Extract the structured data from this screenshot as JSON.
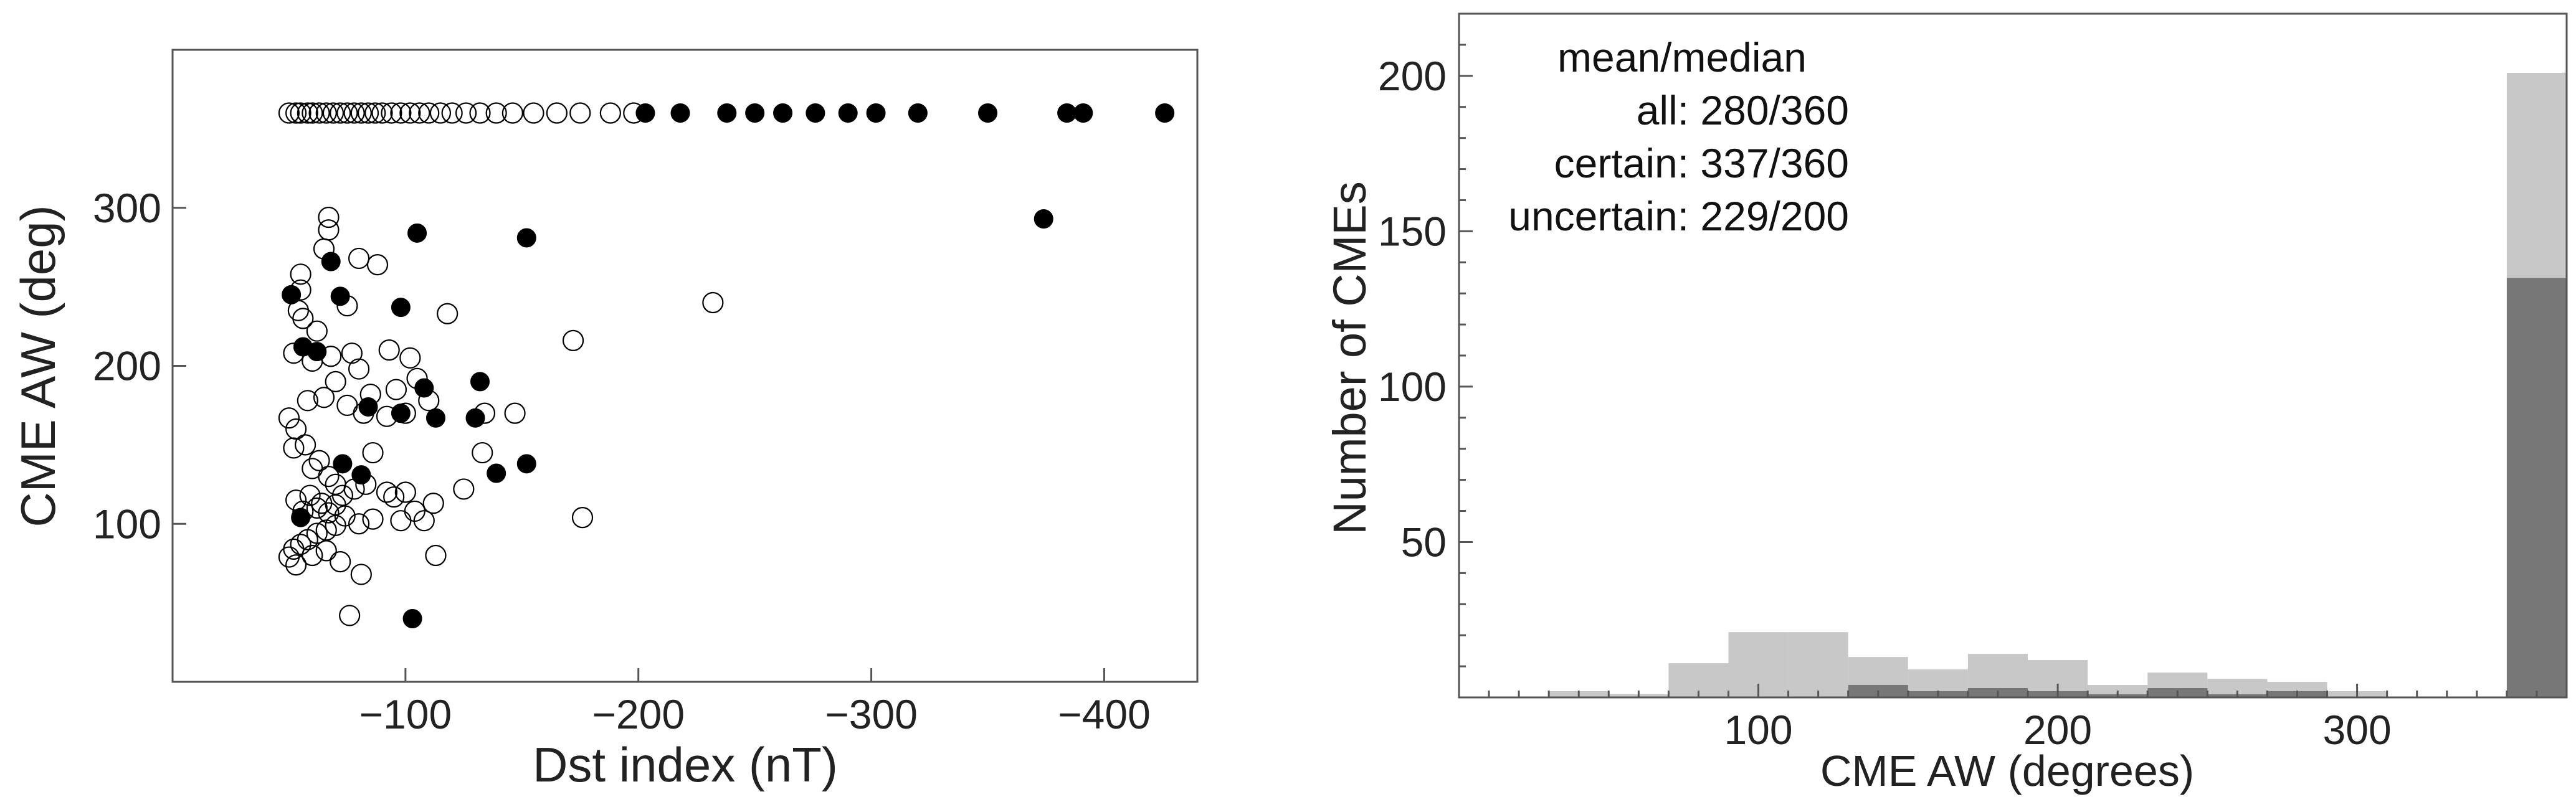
{
  "chart_data": [
    {
      "type": "scatter",
      "xlabel": "Dst index (nT)",
      "ylabel": "CME AW (deg)",
      "xlim": [
        0,
        -440
      ],
      "ylim": [
        0,
        400
      ],
      "x_ticks": [
        -100,
        -200,
        -300,
        -400
      ],
      "y_ticks": [
        100,
        200,
        300
      ],
      "grid": false,
      "series": [
        {
          "marker": "open-circle",
          "color": "#000000",
          "points": [
            [
              -50,
              360
            ],
            [
              -53,
              360
            ],
            [
              -55,
              360
            ],
            [
              -58,
              360
            ],
            [
              -60,
              360
            ],
            [
              -63,
              360
            ],
            [
              -66,
              360
            ],
            [
              -69,
              360
            ],
            [
              -72,
              360
            ],
            [
              -75,
              360
            ],
            [
              -78,
              360
            ],
            [
              -81,
              360
            ],
            [
              -84,
              360
            ],
            [
              -87,
              360
            ],
            [
              -90,
              360
            ],
            [
              -94,
              360
            ],
            [
              -98,
              360
            ],
            [
              -102,
              360
            ],
            [
              -106,
              360
            ],
            [
              -110,
              360
            ],
            [
              -115,
              360
            ],
            [
              -120,
              360
            ],
            [
              -126,
              360
            ],
            [
              -132,
              360
            ],
            [
              -139,
              360
            ],
            [
              -146,
              360
            ],
            [
              -155,
              360
            ],
            [
              -165,
              360
            ],
            [
              -175,
              360
            ],
            [
              -188,
              360
            ],
            [
              -198,
              360
            ],
            [
              -67,
              294
            ],
            [
              -67,
              286
            ],
            [
              -80,
              268
            ],
            [
              -65,
              274
            ],
            [
              -55,
              258
            ],
            [
              -55,
              248
            ],
            [
              -54,
              235
            ],
            [
              -56,
              230
            ],
            [
              -62,
              222
            ],
            [
              -75,
              238
            ],
            [
              -88,
              264
            ],
            [
              -118,
              233
            ],
            [
              -172,
              216
            ],
            [
              -232,
              240
            ],
            [
              -52,
              208
            ],
            [
              -60,
              203
            ],
            [
              -68,
              206
            ],
            [
              -77,
              208
            ],
            [
              -80,
              198
            ],
            [
              -93,
              210
            ],
            [
              -102,
              205
            ],
            [
              -70,
              190
            ],
            [
              -85,
              182
            ],
            [
              -96,
              185
            ],
            [
              -105,
              192
            ],
            [
              -110,
              178
            ],
            [
              -134,
              170
            ],
            [
              -147,
              170
            ],
            [
              -58,
              178
            ],
            [
              -65,
              180
            ],
            [
              -75,
              175
            ],
            [
              -82,
              170
            ],
            [
              -100,
              170
            ],
            [
              -92,
              168
            ],
            [
              -50,
              167
            ],
            [
              -53,
              160
            ],
            [
              -57,
              150
            ],
            [
              -52,
              148
            ],
            [
              -63,
              140
            ],
            [
              -60,
              135
            ],
            [
              -67,
              130
            ],
            [
              -70,
              125
            ],
            [
              -73,
              118
            ],
            [
              -78,
              122
            ],
            [
              -83,
              125
            ],
            [
              -86,
              145
            ],
            [
              -92,
              120
            ],
            [
              -95,
              117
            ],
            [
              -100,
              120
            ],
            [
              -112,
              113
            ],
            [
              -133,
              145
            ],
            [
              -125,
              122
            ],
            [
              -108,
              102
            ],
            [
              -104,
              108
            ],
            [
              -98,
              102
            ],
            [
              -86,
              103
            ],
            [
              -80,
              100
            ],
            [
              -74,
              105
            ],
            [
              -70,
              99
            ],
            [
              -66,
              96
            ],
            [
              -62,
              94
            ],
            [
              -58,
              90
            ],
            [
              -55,
              87
            ],
            [
              -52,
              84
            ],
            [
              -50,
              79
            ],
            [
              -53,
              74
            ],
            [
              -60,
              80
            ],
            [
              -66,
              83
            ],
            [
              -72,
              76
            ],
            [
              -81,
              68
            ],
            [
              -76,
              42
            ],
            [
              -113,
              80
            ],
            [
              -176,
              104
            ],
            [
              -53,
              115
            ],
            [
              -56,
              108
            ],
            [
              -62,
              110
            ],
            [
              -67,
              107
            ],
            [
              -59,
              118
            ],
            [
              -64,
              113
            ],
            [
              -70,
              112
            ]
          ]
        },
        {
          "marker": "filled-circle",
          "color": "#000000",
          "points": [
            [
              -203,
              360
            ],
            [
              -218,
              360
            ],
            [
              -238,
              360
            ],
            [
              -250,
              360
            ],
            [
              -262,
              360
            ],
            [
              -276,
              360
            ],
            [
              -290,
              360
            ],
            [
              -302,
              360
            ],
            [
              -320,
              360
            ],
            [
              -350,
              360
            ],
            [
              -384,
              360
            ],
            [
              -391,
              360
            ],
            [
              -426,
              360
            ],
            [
              -374,
              293
            ],
            [
              -105,
              284
            ],
            [
              -152,
              281
            ],
            [
              -68,
              266
            ],
            [
              -51,
              245
            ],
            [
              -72,
              244
            ],
            [
              -98,
              237
            ],
            [
              -56,
              212
            ],
            [
              -62,
              209
            ],
            [
              -108,
              186
            ],
            [
              -132,
              190
            ],
            [
              -84,
              174
            ],
            [
              -98,
              170
            ],
            [
              -113,
              167
            ],
            [
              -130,
              167
            ],
            [
              -73,
              138
            ],
            [
              -139,
              132
            ],
            [
              -152,
              138
            ],
            [
              -81,
              131
            ],
            [
              -55,
              104
            ],
            [
              -103,
              40
            ]
          ]
        }
      ]
    },
    {
      "type": "bar",
      "xlabel": "CME AW (degrees)",
      "ylabel": "Number of CMEs",
      "xlim": [
        0,
        370
      ],
      "ylim": [
        0,
        220
      ],
      "x_ticks": [
        100,
        200,
        300
      ],
      "y_ticks": [
        50,
        100,
        150,
        200
      ],
      "bin_width": 20,
      "annotation": {
        "header": "mean/median",
        "lines": [
          "all: 280/360",
          "certain: 337/360",
          "uncertain: 229/200"
        ]
      },
      "series": [
        {
          "color": "#c8c8c8",
          "bin_starts": [
            30,
            50,
            70,
            90,
            110,
            130,
            150,
            170,
            190,
            210,
            230,
            250,
            270,
            290,
            350
          ],
          "values": [
            2,
            1,
            11,
            21,
            21,
            13,
            9,
            14,
            12,
            4,
            8,
            6,
            5,
            2,
            201
          ]
        },
        {
          "color": "#777777",
          "bin_starts": [
            30,
            50,
            70,
            90,
            110,
            130,
            150,
            170,
            190,
            210,
            230,
            250,
            270,
            290,
            350
          ],
          "values": [
            0,
            0,
            0,
            0,
            0,
            4,
            2,
            3,
            2,
            1,
            3,
            1,
            2,
            0,
            135
          ]
        }
      ]
    }
  ]
}
